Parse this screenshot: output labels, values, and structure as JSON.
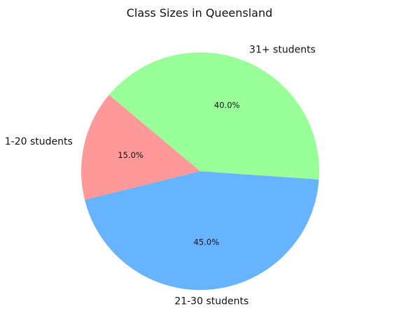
{
  "chart_data": {
    "type": "pie",
    "title": "Class Sizes in Queensland",
    "categories": [
      "1-20 students",
      "21-30 students",
      "31+ students"
    ],
    "values": [
      15,
      45,
      40
    ],
    "percent_labels": [
      "15.0%",
      "45.0%",
      "40.0%"
    ],
    "colors": [
      "#ff9999",
      "#66b3ff",
      "#99ff99"
    ],
    "start_angle_deg": 140,
    "direction": "counterclockwise",
    "legend": "none"
  }
}
